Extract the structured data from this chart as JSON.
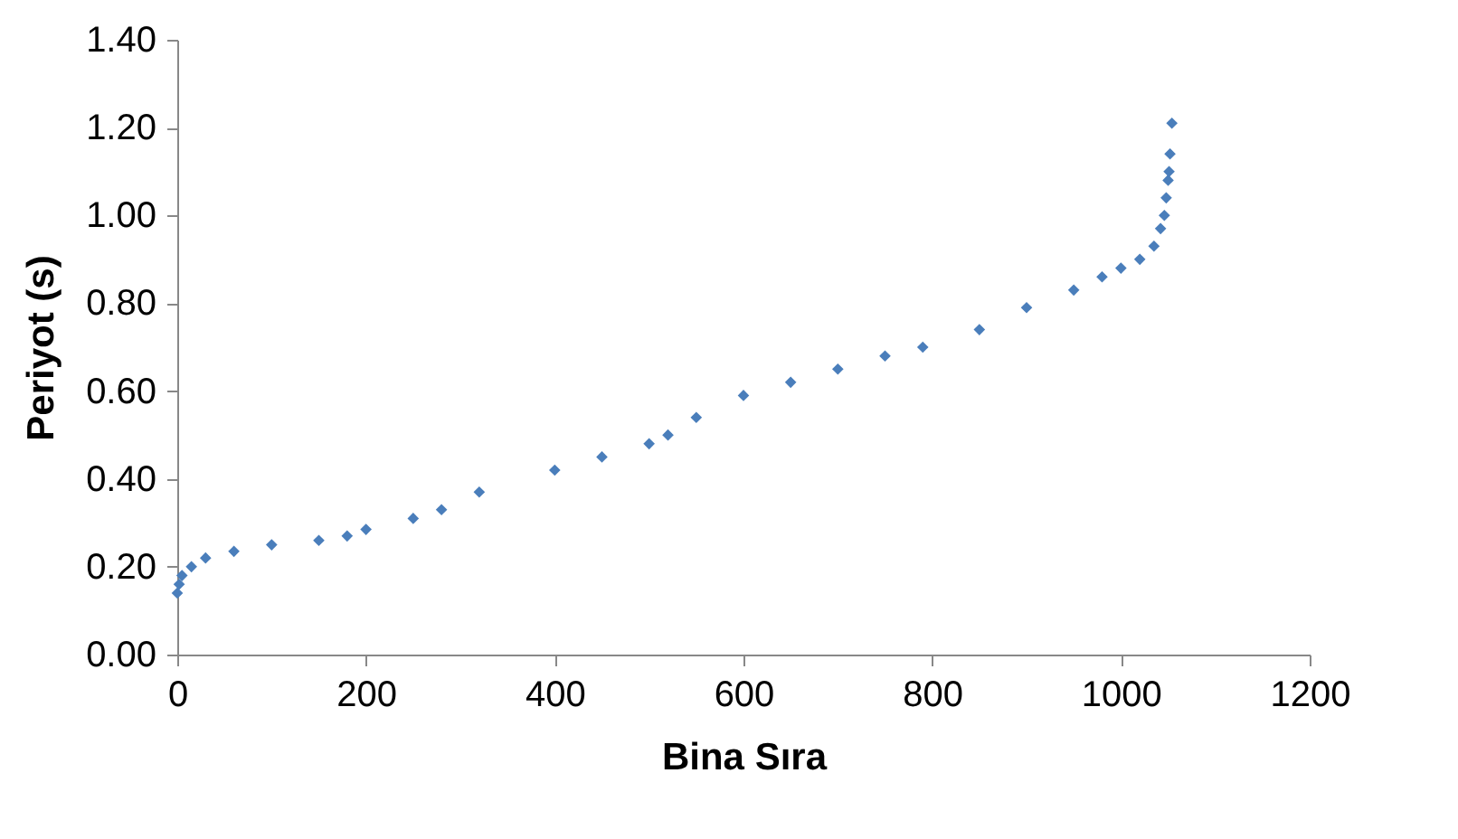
{
  "chart_data": {
    "type": "scatter",
    "xlabel": "Bina Sıra",
    "ylabel": "Periyot (s)",
    "marker": "diamond",
    "x": [
      0,
      2,
      5,
      15,
      30,
      60,
      100,
      150,
      180,
      200,
      250,
      280,
      320,
      400,
      450,
      500,
      520,
      550,
      600,
      650,
      700,
      750,
      790,
      850,
      900,
      950,
      980,
      1000,
      1020,
      1035,
      1042,
      1046,
      1048,
      1050,
      1051,
      1052,
      1054
    ],
    "series": [
      {
        "color": "#4a7ebb",
        "values": [
          0.14,
          0.16,
          0.18,
          0.2,
          0.22,
          0.235,
          0.25,
          0.26,
          0.27,
          0.285,
          0.31,
          0.33,
          0.37,
          0.42,
          0.45,
          0.48,
          0.5,
          0.54,
          0.59,
          0.62,
          0.65,
          0.68,
          0.7,
          0.74,
          0.79,
          0.83,
          0.86,
          0.88,
          0.9,
          0.93,
          0.97,
          1.0,
          1.04,
          1.08,
          1.1,
          1.14,
          1.21
        ]
      }
    ],
    "xlim": [
      0,
      1200
    ],
    "xticks": [
      0,
      200,
      400,
      600,
      800,
      1000,
      1200
    ],
    "ylim": [
      0,
      1.4
    ],
    "yticks": [
      {
        "value": 0,
        "label": "0.00"
      },
      {
        "value": 0.2,
        "label": "0.20"
      },
      {
        "value": 0.4,
        "label": "0.40"
      },
      {
        "value": 0.6,
        "label": "0.60"
      },
      {
        "value": 0.8,
        "label": "0.80"
      },
      {
        "value": 1,
        "label": "1.00"
      },
      {
        "value": 1.2,
        "label": "1.20"
      },
      {
        "value": 1.4,
        "label": "1.40"
      }
    ]
  }
}
